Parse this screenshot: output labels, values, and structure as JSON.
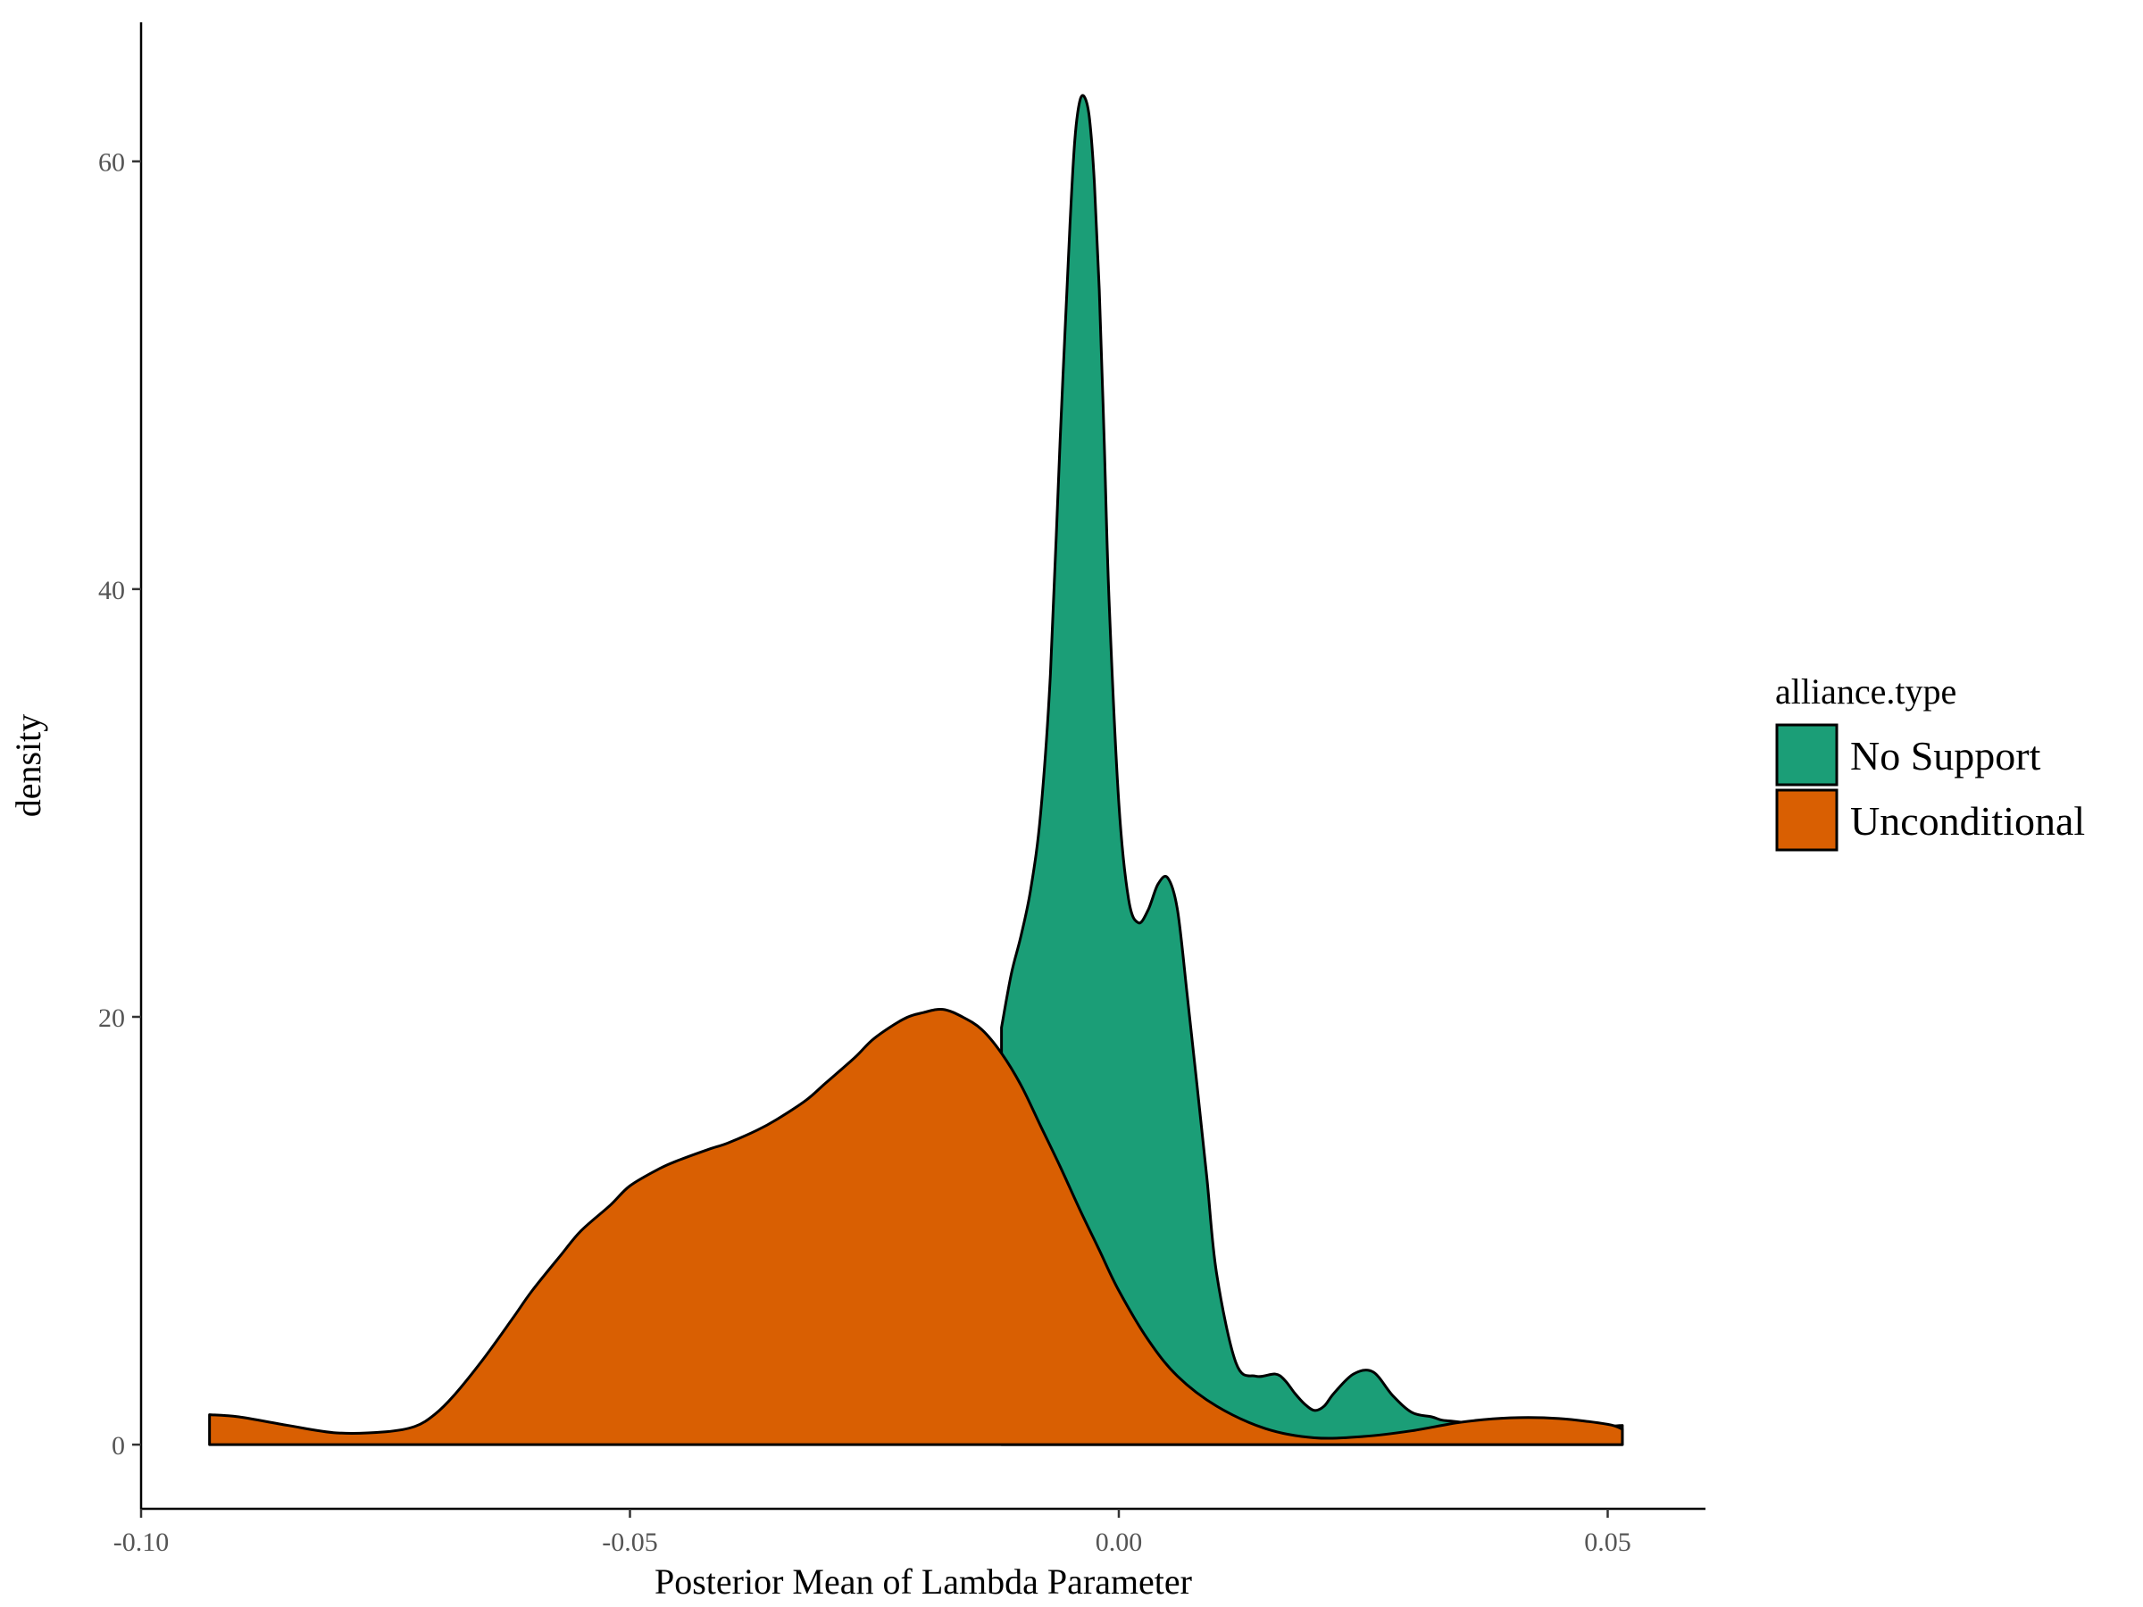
{
  "chart_data": {
    "type": "area",
    "xlabel": "Posterior Mean of Lambda Parameter",
    "ylabel": "density",
    "xlim": [
      -0.1,
      0.06
    ],
    "ylim": [
      -3,
      66.5
    ],
    "x_ticks": [
      -0.1,
      -0.05,
      0.0,
      0.05
    ],
    "x_tick_labels": [
      "-0.10",
      "-0.05",
      "0.00",
      "0.05"
    ],
    "y_ticks": [
      0,
      20,
      40,
      60
    ],
    "y_tick_labels": [
      "0",
      "20",
      "40",
      "60"
    ],
    "grid": false,
    "legend": {
      "title": "alliance.type",
      "position": "right"
    },
    "series": [
      {
        "name": "No Support",
        "color": "#1B9E77",
        "x": [
          -0.012,
          -0.011,
          -0.01,
          -0.009,
          -0.008,
          -0.007,
          -0.006,
          -0.005,
          -0.0045,
          -0.004,
          -0.0035,
          -0.003,
          -0.0025,
          -0.002,
          -0.0015,
          -0.001,
          0.0,
          0.001,
          0.002,
          0.003,
          0.004,
          0.005,
          0.006,
          0.007,
          0.008,
          0.009,
          0.01,
          0.012,
          0.014,
          0.016,
          0.017,
          0.018,
          0.019,
          0.02,
          0.021,
          0.022,
          0.024,
          0.026,
          0.028,
          0.03,
          0.032,
          0.033,
          0.034,
          0.035,
          0.036,
          0.038,
          0.04,
          0.042,
          0.045,
          0.048,
          0.05,
          0.0515
        ],
        "values": [
          19.5,
          22.0,
          23.8,
          26.0,
          29.5,
          36.0,
          47.0,
          57.0,
          61.0,
          62.8,
          63.0,
          62.0,
          59.0,
          54.0,
          47.0,
          39.5,
          30.0,
          25.5,
          24.4,
          25.0,
          26.2,
          26.5,
          25.0,
          21.0,
          16.8,
          12.5,
          8.0,
          3.8,
          3.2,
          3.3,
          3.0,
          2.4,
          1.9,
          1.6,
          1.8,
          2.4,
          3.3,
          3.4,
          2.3,
          1.5,
          1.3,
          1.15,
          1.1,
          1.05,
          1.0,
          0.95,
          0.9,
          0.8,
          0.75,
          0.8,
          0.85,
          0.9
        ]
      },
      {
        "name": "Unconditional",
        "color": "#D95F02",
        "x": [
          -0.093,
          -0.09,
          -0.085,
          -0.08,
          -0.075,
          -0.072,
          -0.07,
          -0.068,
          -0.065,
          -0.062,
          -0.06,
          -0.057,
          -0.055,
          -0.052,
          -0.05,
          -0.047,
          -0.045,
          -0.042,
          -0.04,
          -0.037,
          -0.035,
          -0.032,
          -0.03,
          -0.027,
          -0.025,
          -0.022,
          -0.02,
          -0.018,
          -0.016,
          -0.014,
          -0.012,
          -0.01,
          -0.008,
          -0.006,
          -0.004,
          -0.002,
          0.0,
          0.003,
          0.006,
          0.01,
          0.015,
          0.02,
          0.025,
          0.03,
          0.035,
          0.04,
          0.045,
          0.05,
          0.0515
        ],
        "values": [
          1.4,
          1.3,
          0.9,
          0.55,
          0.6,
          0.85,
          1.4,
          2.3,
          4.0,
          5.9,
          7.2,
          8.9,
          10.0,
          11.2,
          12.1,
          12.9,
          13.3,
          13.8,
          14.1,
          14.7,
          15.2,
          16.1,
          16.9,
          18.1,
          19.0,
          19.9,
          20.2,
          20.35,
          20.0,
          19.4,
          18.3,
          16.8,
          14.9,
          13.0,
          11.0,
          9.1,
          7.2,
          4.9,
          3.2,
          1.8,
          0.75,
          0.32,
          0.38,
          0.65,
          1.05,
          1.25,
          1.22,
          0.95,
          0.72
        ]
      }
    ]
  }
}
